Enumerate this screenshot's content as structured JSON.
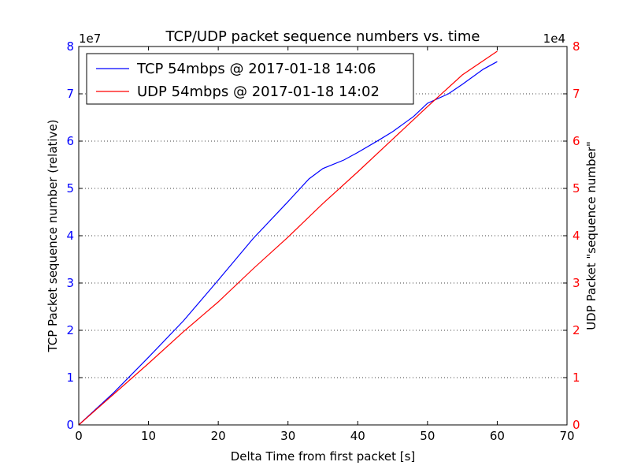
{
  "chart_data": {
    "type": "line",
    "title": "TCP/UDP packet sequence numbers vs. time",
    "xlabel": "Delta Time from first packet [s]",
    "ylabel_left": "TCP Packet sequence number (relative)",
    "ylabel_right": "UDP Packet \"sequence number\"",
    "left_multiplier": "1e7",
    "right_multiplier": "1e4",
    "xlim": [
      0,
      70
    ],
    "ylim_left": [
      0,
      8
    ],
    "ylim_right": [
      0,
      8
    ],
    "xticks": [
      0,
      10,
      20,
      30,
      40,
      50,
      60,
      70
    ],
    "yticks_left": [
      0,
      1,
      2,
      3,
      4,
      5,
      6,
      7,
      8
    ],
    "yticks_right": [
      0,
      1,
      2,
      3,
      4,
      5,
      6,
      7,
      8
    ],
    "grid": "horizontal dotted",
    "legend_position": "top-left",
    "colors": {
      "left_axis": "#0000ff",
      "right_axis": "#ff0000"
    },
    "series": [
      {
        "name": "TCP 54mbps @ 2017-01-18 14:06",
        "axis": "left",
        "color": "#0000ff",
        "x": [
          0,
          5,
          10,
          15,
          20,
          25,
          30,
          33,
          35,
          38,
          40,
          43,
          45,
          48,
          50,
          53,
          55,
          58,
          60
        ],
        "y": [
          0,
          0.68,
          1.43,
          2.2,
          3.06,
          3.94,
          4.72,
          5.2,
          5.42,
          5.6,
          5.76,
          6.02,
          6.2,
          6.52,
          6.8,
          7.0,
          7.2,
          7.52,
          7.68
        ]
      },
      {
        "name": "UDP 54mbps @ 2017-01-18 14:02",
        "axis": "right",
        "color": "#ff0000",
        "x": [
          0,
          5,
          10,
          15,
          20,
          25,
          30,
          35,
          40,
          45,
          50,
          55,
          60
        ],
        "y": [
          0,
          0.65,
          1.3,
          1.97,
          2.6,
          3.3,
          3.97,
          4.68,
          5.35,
          6.04,
          6.73,
          7.4,
          7.9
        ]
      }
    ]
  }
}
